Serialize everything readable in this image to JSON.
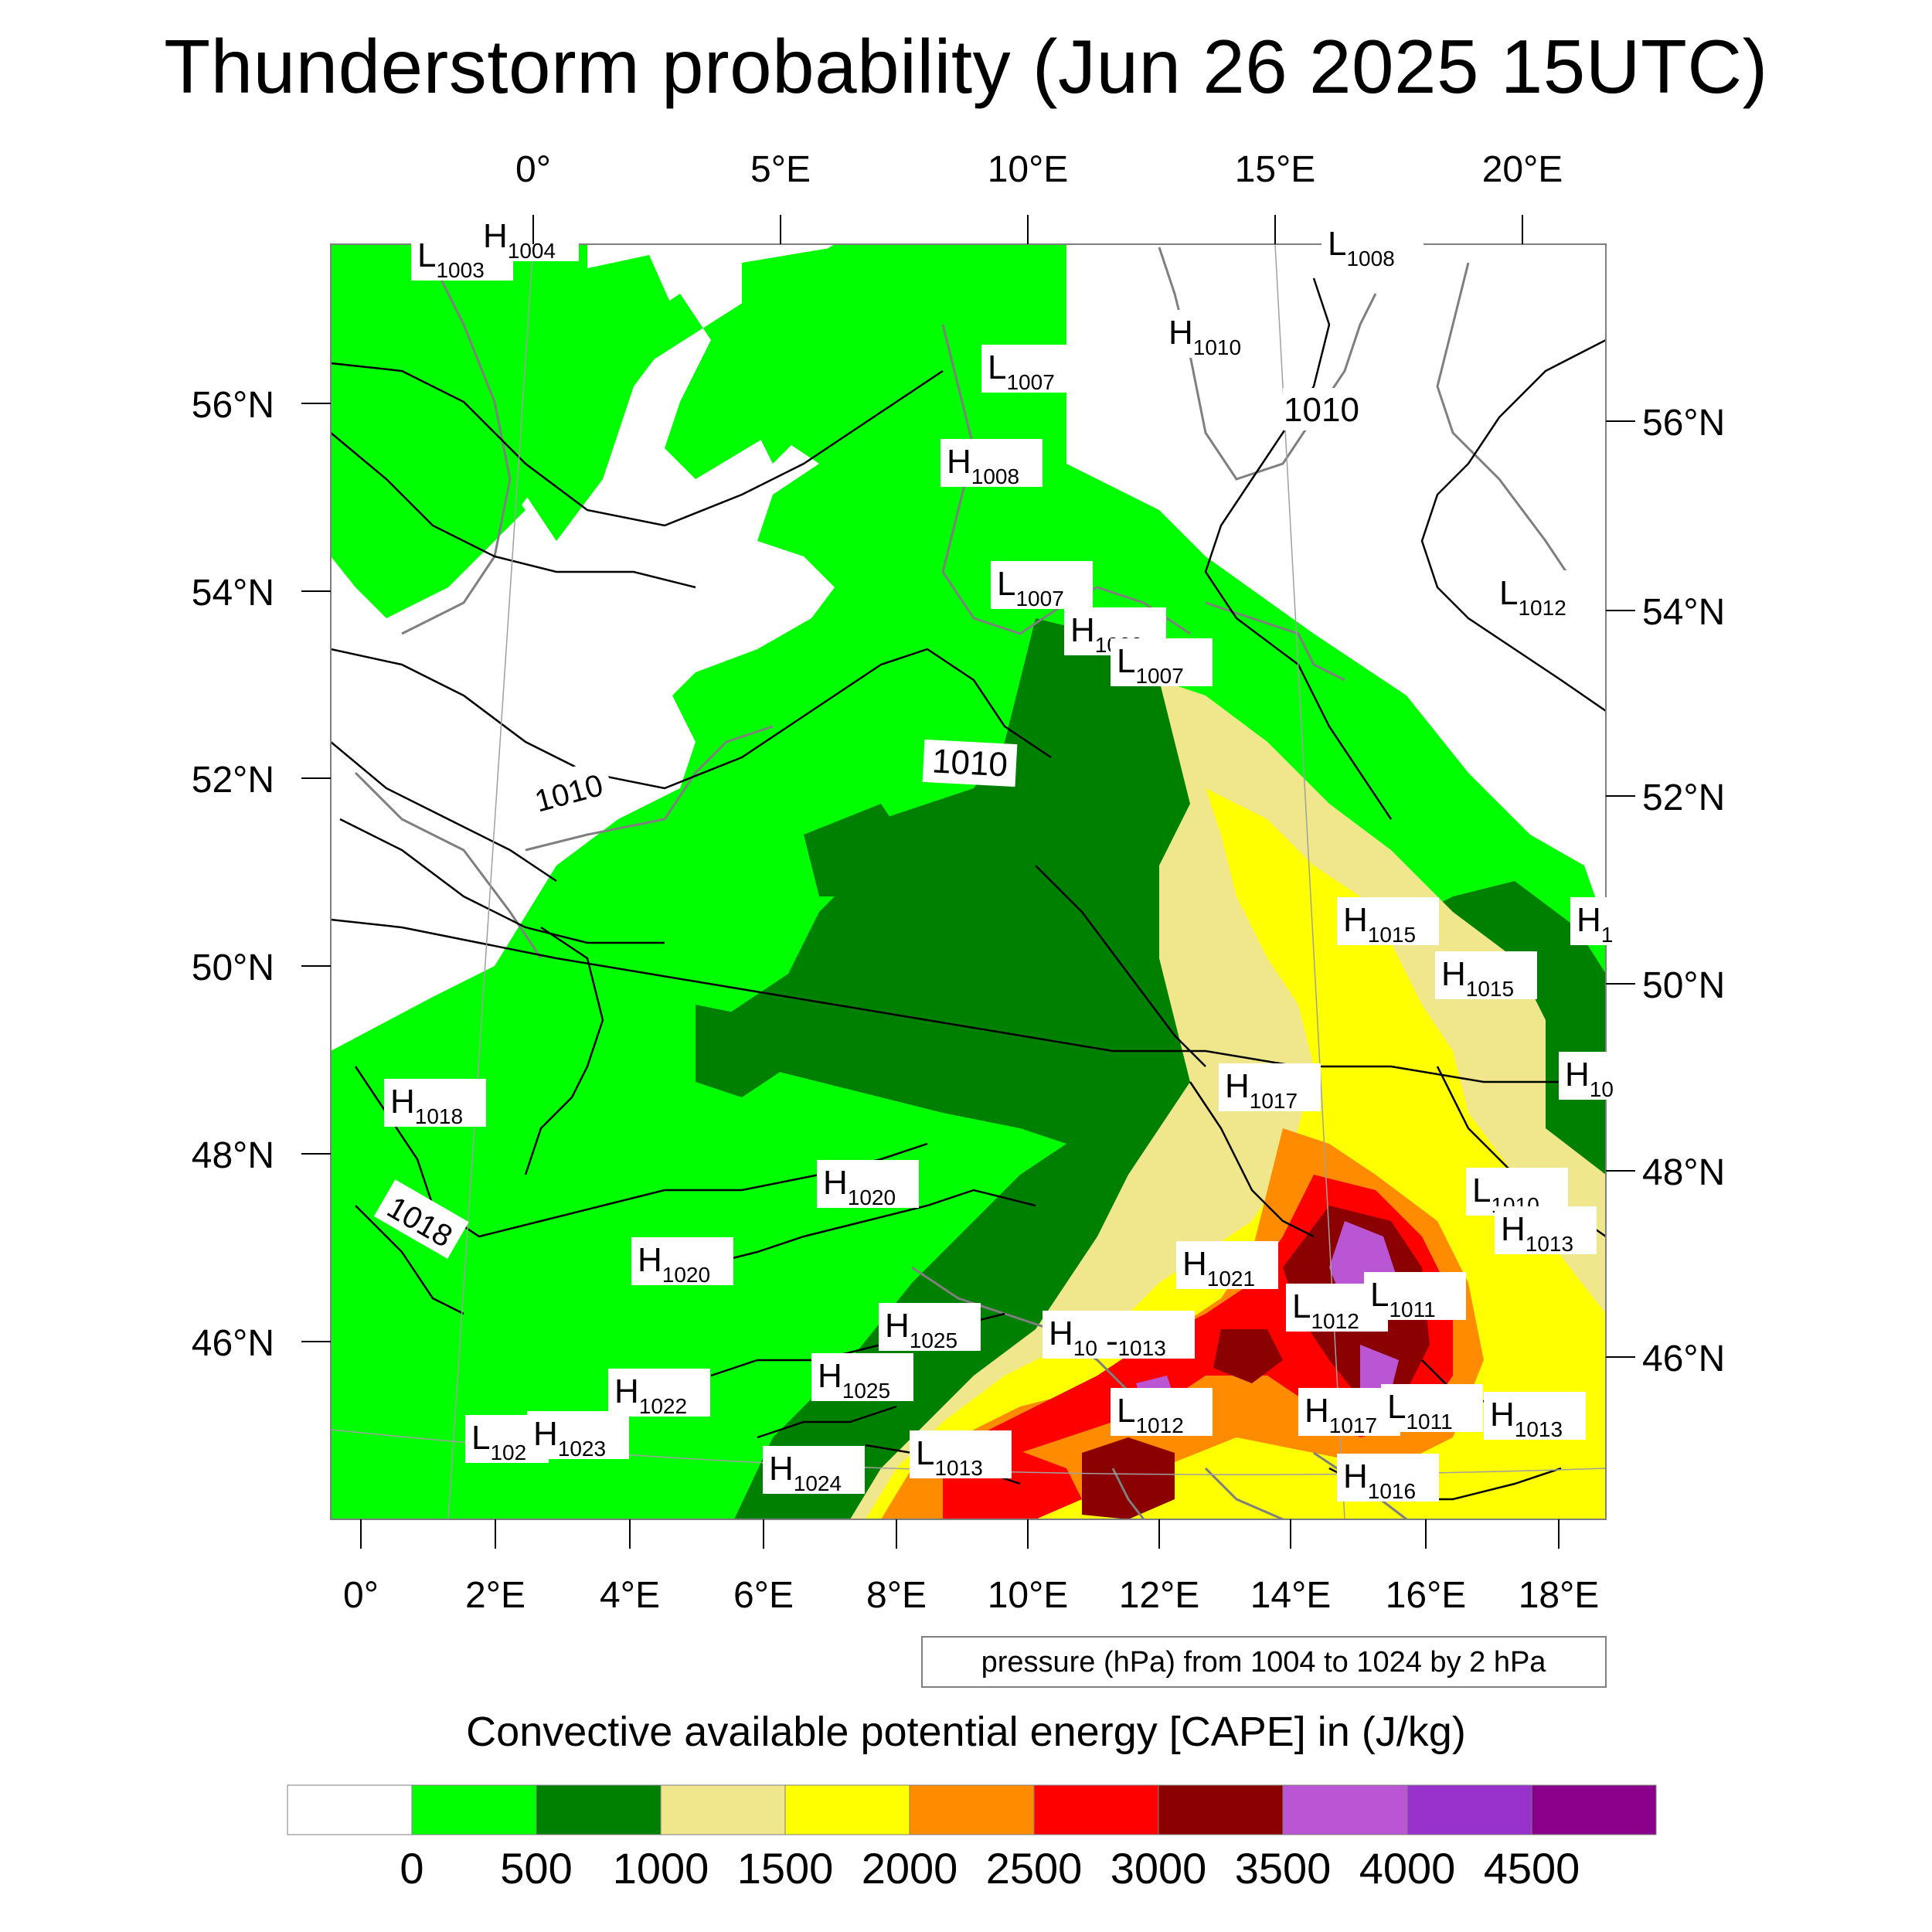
{
  "title": "Thunderstorm probability (Jun 26 2025 15UTC)",
  "top_lon_labels": [
    "0°",
    "5°E",
    "10°E",
    "15°E",
    "20°E"
  ],
  "bottom_lon_labels": [
    "0°",
    "2°E",
    "4°E",
    "6°E",
    "8°E",
    "10°E",
    "12°E",
    "14°E",
    "16°E",
    "18°E"
  ],
  "left_lat_labels": [
    "56°N",
    "54°N",
    "52°N",
    "50°N",
    "48°N",
    "46°N"
  ],
  "right_lat_labels": [
    "56°N",
    "54°N",
    "52°N",
    "50°N",
    "48°N",
    "46°N"
  ],
  "pressure_note": "pressure (hPa) from 1004 to 1024 by 2 hPa",
  "contour_labels": [
    "1010",
    "1010",
    "1010",
    "1018"
  ],
  "pressure_centers": [
    {
      "type": "L",
      "value": "1003"
    },
    {
      "type": "H",
      "value": "1004"
    },
    {
      "type": "L",
      "value": "1008"
    },
    {
      "type": "H",
      "value": "1010"
    },
    {
      "type": "L",
      "value": "1007"
    },
    {
      "type": "H",
      "value": "1008"
    },
    {
      "type": "L",
      "value": "1007"
    },
    {
      "type": "H",
      "value": "1009"
    },
    {
      "type": "L",
      "value": "1007"
    },
    {
      "type": "L",
      "value": "1012"
    },
    {
      "type": "H",
      "value": "1015"
    },
    {
      "type": "H",
      "value": "1015"
    },
    {
      "type": "H",
      "value": "1"
    },
    {
      "type": "H",
      "value": "10"
    },
    {
      "type": "H",
      "value": "1018"
    },
    {
      "type": "H",
      "value": "1017"
    },
    {
      "type": "H",
      "value": "1020"
    },
    {
      "type": "L",
      "value": "1010"
    },
    {
      "type": "H",
      "value": "1013"
    },
    {
      "type": "H",
      "value": "1020"
    },
    {
      "type": "H",
      "value": "1021"
    },
    {
      "type": "L",
      "value": "1012"
    },
    {
      "type": "L",
      "value": "1011"
    },
    {
      "type": "H",
      "value": "1025"
    },
    {
      "type": "H",
      "value": "10"
    },
    {
      "type": "L",
      "value": "1013"
    },
    {
      "type": "H",
      "value": "10"
    },
    {
      "type": "H",
      "value": "1025"
    },
    {
      "type": "H",
      "value": "1022"
    },
    {
      "type": "L",
      "value": "1012"
    },
    {
      "type": "H",
      "value": "1017"
    },
    {
      "type": "L",
      "value": "1011"
    },
    {
      "type": "H",
      "value": "1013"
    },
    {
      "type": "L",
      "value": "102"
    },
    {
      "type": "H",
      "value": "1023"
    },
    {
      "type": "H",
      "value": "1024"
    },
    {
      "type": "L",
      "value": "1013"
    },
    {
      "type": "H",
      "value": "1016"
    }
  ],
  "colorbar": {
    "title": "Convective available potential energy [CAPE] in (J/kg)",
    "colors": [
      "#ffffff",
      "#00ff00",
      "#008000",
      "#f0e68c",
      "#ffff00",
      "#ff8c00",
      "#ff0000",
      "#8b0000",
      "#ba55d3",
      "#9932cc",
      "#8b008b"
    ],
    "labels": [
      "0",
      "500",
      "1000",
      "1500",
      "2000",
      "2500",
      "3000",
      "3500",
      "4000",
      "4500"
    ]
  }
}
